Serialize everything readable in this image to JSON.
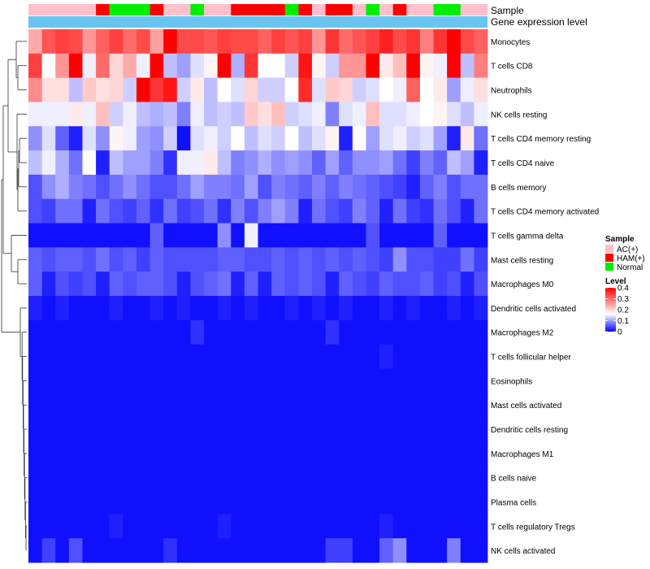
{
  "chart_data": {
    "type": "heatmap",
    "annotation_labels": [
      "Sample",
      "Gene expression level"
    ],
    "rows": [
      "Monocytes",
      "T cells CD8",
      "Neutrophils",
      "NK cells resting",
      "T cells CD4 memory resting",
      "T cells CD4 naive",
      "B cells memory",
      "T cells CD4 memory activated",
      "T cells gamma delta",
      "Mast cells resting",
      "Macrophages M0",
      "Dendritic cells activated",
      "Macrophages M2",
      "T cells follicular helper",
      "Eosinophils",
      "Mast cells activated",
      "Dendritic cells resting",
      "Macrophages M1",
      "B cells naive",
      "Plasma cells",
      "T cells regulatory  Tregs",
      "NK cells activated"
    ],
    "sample_groups": [
      "AC(+)",
      "AC(+)",
      "AC(+)",
      "AC(+)",
      "AC(+)",
      "HAM(+)",
      "Normal",
      "Normal",
      "Normal",
      "HAM(+)",
      "AC(+)",
      "AC(+)",
      "Normal",
      "AC(+)",
      "AC(+)",
      "HAM(+)",
      "HAM(+)",
      "HAM(+)",
      "HAM(+)",
      "Normal",
      "HAM(+)",
      "AC(+)",
      "HAM(+)",
      "HAM(+)",
      "AC(+)",
      "Normal",
      "AC(+)",
      "HAM(+)",
      "AC(+)",
      "AC(+)",
      "Normal",
      "Normal",
      "AC(+)",
      "AC(+)"
    ],
    "values": [
      [
        0.24,
        0.32,
        0.34,
        0.33,
        0.26,
        0.31,
        0.34,
        0.3,
        0.33,
        0.25,
        0.42,
        0.33,
        0.33,
        0.32,
        0.34,
        0.33,
        0.33,
        0.31,
        0.34,
        0.32,
        0.34,
        0.26,
        0.35,
        0.3,
        0.32,
        0.34,
        0.37,
        0.33,
        0.35,
        0.28,
        0.35,
        0.44,
        0.33,
        0.31
      ],
      [
        0.34,
        0.16,
        0.26,
        0.46,
        0.15,
        0.3,
        0.2,
        0.24,
        0.15,
        0.43,
        0.12,
        0.1,
        0.14,
        0.17,
        0.41,
        0.11,
        0.35,
        0.16,
        0.16,
        0.13,
        0.38,
        0.17,
        0.13,
        0.26,
        0.26,
        0.44,
        0.18,
        0.22,
        0.4,
        0.17,
        0.15,
        0.44,
        0.12,
        0.28
      ],
      [
        0.27,
        0.19,
        0.19,
        0.12,
        0.21,
        0.19,
        0.2,
        0.13,
        0.43,
        0.35,
        0.38,
        0.13,
        0.18,
        0.12,
        0.16,
        0.14,
        0.2,
        0.13,
        0.13,
        0.16,
        0.36,
        0.14,
        0.21,
        0.2,
        0.13,
        0.14,
        0.16,
        0.15,
        0.31,
        0.16,
        0.18,
        0.1,
        0.15,
        0.19
      ],
      [
        0.15,
        0.15,
        0.15,
        0.18,
        0.15,
        0.22,
        0.13,
        0.15,
        0.12,
        0.11,
        0.12,
        0.08,
        0.15,
        0.12,
        0.13,
        0.12,
        0.21,
        0.19,
        0.22,
        0.13,
        0.14,
        0.15,
        0.08,
        0.14,
        0.15,
        0.22,
        0.14,
        0.14,
        0.15,
        0.16,
        0.17,
        0.14,
        0.12,
        0.15
      ],
      [
        0.09,
        0.14,
        0.06,
        0.02,
        0.14,
        0.09,
        0.17,
        0.15,
        0.1,
        0.09,
        0.13,
        0.01,
        0.14,
        0.15,
        0.13,
        0.16,
        0.12,
        0.14,
        0.13,
        0.16,
        0.12,
        0.14,
        0.17,
        0.02,
        0.16,
        0.1,
        0.14,
        0.15,
        0.13,
        0.14,
        0.1,
        0.02,
        0.18,
        0.07
      ],
      [
        0.12,
        0.15,
        0.11,
        0.07,
        0.16,
        0.02,
        0.12,
        0.1,
        0.1,
        0.08,
        0.03,
        0.15,
        0.15,
        0.18,
        0.12,
        0.08,
        0.09,
        0.11,
        0.09,
        0.1,
        0.09,
        0.06,
        0.1,
        0.06,
        0.09,
        0.09,
        0.1,
        0.07,
        0.04,
        0.08,
        0.06,
        0.12,
        0.1,
        0.02
      ],
      [
        0.05,
        0.09,
        0.11,
        0.08,
        0.07,
        0.05,
        0.07,
        0.09,
        0.07,
        0.05,
        0.05,
        0.07,
        0.1,
        0.08,
        0.08,
        0.07,
        0.1,
        0.05,
        0.08,
        0.07,
        0.06,
        0.08,
        0.06,
        0.08,
        0.07,
        0.06,
        0.05,
        0.04,
        0.02,
        0.06,
        0.08,
        0.05,
        0.07,
        0.07
      ],
      [
        0.05,
        0.04,
        0.07,
        0.07,
        0.02,
        0.07,
        0.05,
        0.04,
        0.06,
        0.03,
        0.07,
        0.04,
        0.05,
        0.07,
        0.03,
        0.08,
        0.05,
        0.08,
        0.1,
        0.08,
        0.02,
        0.07,
        0.05,
        0.04,
        0.08,
        0.06,
        0.02,
        0.07,
        0.04,
        0.03,
        0.07,
        0.05,
        0.02,
        0.07
      ],
      [
        0.01,
        0.01,
        0.01,
        0.01,
        0.01,
        0.01,
        0.01,
        0.01,
        0.01,
        0.06,
        0.01,
        0.01,
        0.01,
        0.01,
        0.09,
        0.01,
        0.15,
        0.01,
        0.01,
        0.01,
        0.01,
        0.01,
        0.01,
        0.01,
        0.01,
        0.05,
        0.01,
        0.01,
        0.01,
        0.01,
        0.06,
        0.01,
        0.01,
        0.01
      ],
      [
        0.06,
        0.05,
        0.06,
        0.06,
        0.05,
        0.07,
        0.05,
        0.06,
        0.04,
        0.06,
        0.05,
        0.05,
        0.05,
        0.05,
        0.06,
        0.06,
        0.05,
        0.05,
        0.06,
        0.05,
        0.06,
        0.05,
        0.06,
        0.05,
        0.06,
        0.05,
        0.04,
        0.09,
        0.05,
        0.05,
        0.04,
        0.04,
        0.07,
        0.04
      ],
      [
        0.06,
        0.02,
        0.05,
        0.04,
        0.05,
        0.02,
        0.06,
        0.05,
        0.06,
        0.06,
        0.05,
        0.02,
        0.05,
        0.06,
        0.07,
        0.02,
        0.06,
        0.02,
        0.06,
        0.05,
        0.06,
        0.05,
        0.02,
        0.06,
        0.05,
        0.04,
        0.06,
        0.05,
        0.05,
        0.06,
        0.04,
        0.05,
        0.02,
        0.05
      ],
      [
        0.02,
        0.01,
        0.02,
        0.01,
        0.01,
        0.01,
        0.02,
        0.01,
        0.01,
        0.02,
        0.01,
        0.02,
        0.01,
        0.01,
        0.02,
        0.01,
        0.02,
        0.01,
        0.01,
        0.02,
        0.01,
        0.02,
        0.01,
        0.02,
        0.01,
        0.01,
        0.02,
        0.01,
        0.02,
        0.01,
        0.01,
        0.02,
        0.01,
        0.02
      ],
      [
        0.01,
        0.01,
        0.01,
        0.01,
        0.01,
        0.01,
        0.01,
        0.01,
        0.01,
        0.01,
        0.01,
        0.01,
        0.03,
        0.01,
        0.01,
        0.01,
        0.01,
        0.01,
        0.01,
        0.01,
        0.01,
        0.01,
        0.03,
        0.01,
        0.01,
        0.01,
        0.01,
        0.01,
        0.01,
        0.01,
        0.01,
        0.01,
        0.01,
        0.01
      ],
      [
        0.01,
        0.01,
        0.01,
        0.01,
        0.01,
        0.01,
        0.01,
        0.01,
        0.01,
        0.01,
        0.01,
        0.01,
        0.01,
        0.01,
        0.01,
        0.01,
        0.01,
        0.01,
        0.01,
        0.01,
        0.01,
        0.01,
        0.01,
        0.01,
        0.01,
        0.01,
        0.02,
        0.01,
        0.01,
        0.01,
        0.01,
        0.01,
        0.01,
        0.01
      ],
      [
        0.01,
        0.01,
        0.01,
        0.01,
        0.01,
        0.01,
        0.01,
        0.01,
        0.01,
        0.01,
        0.01,
        0.01,
        0.01,
        0.01,
        0.01,
        0.01,
        0.01,
        0.01,
        0.01,
        0.01,
        0.01,
        0.01,
        0.01,
        0.01,
        0.01,
        0.01,
        0.01,
        0.01,
        0.01,
        0.01,
        0.01,
        0.01,
        0.01,
        0.01
      ],
      [
        0.01,
        0.01,
        0.01,
        0.01,
        0.01,
        0.01,
        0.01,
        0.01,
        0.01,
        0.01,
        0.01,
        0.01,
        0.01,
        0.01,
        0.01,
        0.01,
        0.01,
        0.01,
        0.01,
        0.01,
        0.01,
        0.01,
        0.01,
        0.01,
        0.01,
        0.01,
        0.01,
        0.01,
        0.01,
        0.01,
        0.01,
        0.01,
        0.01,
        0.01
      ],
      [
        0.01,
        0.01,
        0.01,
        0.01,
        0.01,
        0.01,
        0.01,
        0.01,
        0.01,
        0.01,
        0.01,
        0.01,
        0.01,
        0.01,
        0.01,
        0.01,
        0.01,
        0.01,
        0.01,
        0.01,
        0.01,
        0.01,
        0.01,
        0.01,
        0.01,
        0.01,
        0.01,
        0.01,
        0.01,
        0.01,
        0.01,
        0.01,
        0.01,
        0.01
      ],
      [
        0.01,
        0.01,
        0.01,
        0.01,
        0.01,
        0.01,
        0.01,
        0.01,
        0.01,
        0.01,
        0.01,
        0.01,
        0.01,
        0.01,
        0.01,
        0.01,
        0.01,
        0.01,
        0.01,
        0.01,
        0.01,
        0.01,
        0.01,
        0.01,
        0.01,
        0.01,
        0.01,
        0.01,
        0.01,
        0.01,
        0.01,
        0.01,
        0.01,
        0.01
      ],
      [
        0.01,
        0.01,
        0.01,
        0.01,
        0.01,
        0.01,
        0.01,
        0.01,
        0.01,
        0.01,
        0.01,
        0.01,
        0.01,
        0.01,
        0.01,
        0.01,
        0.01,
        0.01,
        0.01,
        0.01,
        0.01,
        0.01,
        0.01,
        0.01,
        0.01,
        0.01,
        0.01,
        0.01,
        0.01,
        0.01,
        0.01,
        0.01,
        0.01,
        0.01
      ],
      [
        0.01,
        0.01,
        0.01,
        0.01,
        0.01,
        0.01,
        0.01,
        0.01,
        0.01,
        0.01,
        0.01,
        0.01,
        0.01,
        0.01,
        0.01,
        0.01,
        0.01,
        0.01,
        0.01,
        0.01,
        0.01,
        0.01,
        0.01,
        0.01,
        0.01,
        0.01,
        0.01,
        0.01,
        0.01,
        0.01,
        0.01,
        0.01,
        0.01,
        0.01
      ],
      [
        0.01,
        0.01,
        0.01,
        0.01,
        0.01,
        0.01,
        0.02,
        0.01,
        0.01,
        0.01,
        0.01,
        0.01,
        0.01,
        0.01,
        0.02,
        0.01,
        0.01,
        0.01,
        0.01,
        0.01,
        0.01,
        0.01,
        0.01,
        0.01,
        0.01,
        0.01,
        0.02,
        0.01,
        0.01,
        0.01,
        0.01,
        0.01,
        0.01,
        0.01
      ],
      [
        0.01,
        0.04,
        0.01,
        0.05,
        0.01,
        0.01,
        0.01,
        0.01,
        0.01,
        0.01,
        0.03,
        0.01,
        0.01,
        0.01,
        0.01,
        0.01,
        0.01,
        0.01,
        0.01,
        0.01,
        0.01,
        0.01,
        0.04,
        0.04,
        0.01,
        0.01,
        0.06,
        0.09,
        0.01,
        0.01,
        0.01,
        0.08,
        0.01,
        0.01
      ]
    ],
    "legend": {
      "sample_title": "Sample",
      "sample_entries": [
        {
          "label": "AC(+)",
          "color": "#ffc0cb"
        },
        {
          "label": "HAM(+)",
          "color": "#ff0000"
        },
        {
          "label": "Normal",
          "color": "#00ee00"
        }
      ],
      "level_title": "Level",
      "level_ticks": [
        "0.4",
        "0.3",
        "0.2",
        "0.1",
        "0"
      ],
      "level_range": [
        0,
        0.4
      ]
    },
    "colors": {
      "low": "#0000ff",
      "mid": "#ffffff",
      "high": "#ff0000",
      "midpoint": 0.16,
      "expression_bar": "#69c5f0"
    }
  }
}
